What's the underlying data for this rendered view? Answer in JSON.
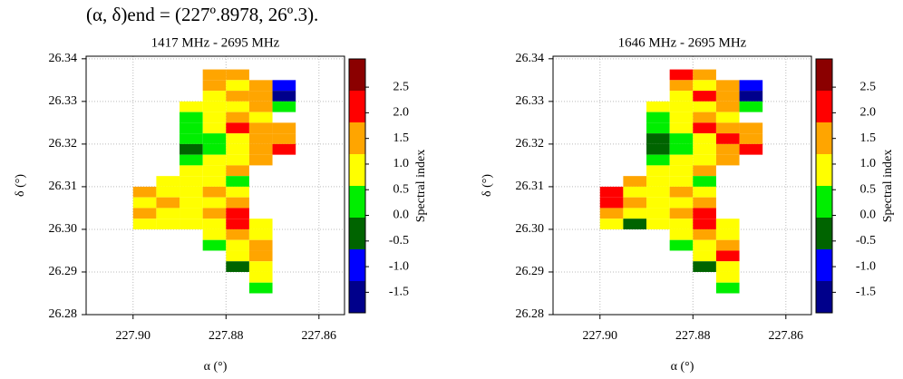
{
  "caption": "(α, δ)end = (227º.8978, 26º.3).",
  "chart_data": [
    {
      "type": "heatmap",
      "title": "1417 MHz - 2695 MHz",
      "xlabel": "α (°)",
      "ylabel": "δ (°)",
      "xlim": [
        227.9101,
        227.8545
      ],
      "ylim": [
        26.28,
        26.3406
      ],
      "xticks": [
        {
          "value": 227.9,
          "label": "227.90"
        },
        227.88,
        227.86
      ],
      "yticks": [
        26.28,
        26.29,
        {
          "value": 26.3,
          "label": "26.30"
        },
        26.31,
        26.32,
        26.33,
        26.34
      ],
      "grid": true,
      "colorbar": {
        "label": "Spectral index",
        "lim": [
          -1.9,
          3.05
        ],
        "colors": [
          "#00008b",
          "#0000ff",
          "#006400",
          "#00ee00",
          "#ffff00",
          "#ffa500",
          "#ff0000",
          "#8b0000"
        ],
        "ticks": [
          -1.5,
          {
            "value": -1,
            "label": "-1.0"
          },
          -0.5,
          {
            "value": 0,
            "label": "0.0"
          },
          0.5,
          {
            "value": 1,
            "label": "1.0"
          },
          1.5,
          {
            "value": 2,
            "label": "2.0"
          },
          2.5
        ]
      },
      "x": [
        227.9075,
        227.9025,
        227.8975,
        227.8925,
        227.8875,
        227.8825,
        227.8775,
        227.8725,
        227.8675,
        227.8625,
        227.8575
      ],
      "y": [
        26.33625,
        26.33375,
        26.33125,
        26.32875,
        26.32625,
        26.32375,
        26.32125,
        26.31875,
        26.31625,
        26.31375,
        26.31125,
        26.30875,
        26.30625,
        26.30375,
        26.30125,
        26.29875,
        26.29625,
        26.29375,
        26.29125,
        26.28875,
        26.28625
      ],
      "z": [
        [
          null,
          null,
          null,
          null,
          null,
          1.5,
          1.5,
          null,
          null,
          null,
          null
        ],
        [
          null,
          null,
          null,
          null,
          null,
          1.5,
          0.9,
          1.5,
          -1.0,
          null,
          null
        ],
        [
          null,
          null,
          null,
          null,
          null,
          0.9,
          1.5,
          1.5,
          -1.6,
          null,
          null
        ],
        [
          null,
          null,
          null,
          null,
          0.9,
          0.9,
          0.9,
          1.5,
          0.3,
          null,
          null
        ],
        [
          null,
          null,
          null,
          null,
          0.3,
          0.9,
          1.5,
          0.9,
          null,
          null,
          null
        ],
        [
          null,
          null,
          null,
          null,
          0.3,
          0.9,
          2.1,
          1.5,
          1.5,
          null,
          null
        ],
        [
          null,
          null,
          null,
          null,
          0.3,
          0.3,
          0.9,
          1.5,
          1.5,
          null,
          null
        ],
        [
          null,
          null,
          null,
          null,
          -0.3,
          0.3,
          0.9,
          1.5,
          2.1,
          null,
          null
        ],
        [
          null,
          null,
          null,
          null,
          0.3,
          0.9,
          0.9,
          1.5,
          null,
          null,
          null
        ],
        [
          null,
          null,
          null,
          null,
          0.9,
          0.9,
          1.5,
          null,
          null,
          null,
          null
        ],
        [
          null,
          null,
          null,
          0.9,
          0.9,
          0.9,
          0.3,
          null,
          null,
          null,
          null
        ],
        [
          null,
          null,
          1.5,
          0.9,
          0.9,
          1.5,
          0.9,
          null,
          null,
          null,
          null
        ],
        [
          null,
          null,
          0.9,
          1.5,
          0.9,
          0.9,
          1.5,
          null,
          null,
          null,
          null
        ],
        [
          null,
          null,
          1.5,
          0.9,
          0.9,
          1.5,
          2.1,
          null,
          null,
          null,
          null
        ],
        [
          null,
          null,
          0.9,
          0.9,
          0.9,
          0.9,
          2.1,
          0.9,
          null,
          null,
          null
        ],
        [
          null,
          null,
          null,
          null,
          null,
          0.9,
          1.5,
          0.9,
          null,
          null,
          null
        ],
        [
          null,
          null,
          null,
          null,
          null,
          0.3,
          0.9,
          1.5,
          null,
          null,
          null
        ],
        [
          null,
          null,
          null,
          null,
          null,
          null,
          0.9,
          1.5,
          null,
          null,
          null
        ],
        [
          null,
          null,
          null,
          null,
          null,
          null,
          -0.3,
          0.9,
          null,
          null,
          null
        ],
        [
          null,
          null,
          null,
          null,
          null,
          null,
          null,
          0.9,
          null,
          null,
          null
        ],
        [
          null,
          null,
          null,
          null,
          null,
          null,
          null,
          0.3,
          null,
          null,
          null
        ]
      ]
    },
    {
      "type": "heatmap",
      "title": "1646 MHz - 2695 MHz",
      "xlabel": "α (°)",
      "ylabel": "δ (°)",
      "xlim": [
        227.9101,
        227.8545
      ],
      "ylim": [
        26.28,
        26.3406
      ],
      "xticks": [
        {
          "value": 227.9,
          "label": "227.90"
        },
        227.88,
        227.86
      ],
      "yticks": [
        26.28,
        26.29,
        {
          "value": 26.3,
          "label": "26.30"
        },
        26.31,
        26.32,
        26.33,
        26.34
      ],
      "grid": true,
      "colorbar": {
        "label": "Spectral index",
        "lim": [
          -1.9,
          3.05
        ],
        "colors": [
          "#00008b",
          "#0000ff",
          "#006400",
          "#00ee00",
          "#ffff00",
          "#ffa500",
          "#ff0000",
          "#8b0000"
        ],
        "ticks": [
          -1.5,
          {
            "value": -1,
            "label": "-1.0"
          },
          -0.5,
          {
            "value": 0,
            "label": "0.0"
          },
          0.5,
          {
            "value": 1,
            "label": "1.0"
          },
          1.5,
          {
            "value": 2,
            "label": "2.0"
          },
          2.5
        ]
      },
      "x": [
        227.9075,
        227.9025,
        227.8975,
        227.8925,
        227.8875,
        227.8825,
        227.8775,
        227.8725,
        227.8675,
        227.8625,
        227.8575
      ],
      "y": [
        26.33625,
        26.33375,
        26.33125,
        26.32875,
        26.32625,
        26.32375,
        26.32125,
        26.31875,
        26.31625,
        26.31375,
        26.31125,
        26.30875,
        26.30625,
        26.30375,
        26.30125,
        26.29875,
        26.29625,
        26.29375,
        26.29125,
        26.28875,
        26.28625
      ],
      "z": [
        [
          null,
          null,
          null,
          null,
          null,
          2.1,
          1.5,
          null,
          null,
          null,
          null
        ],
        [
          null,
          null,
          null,
          null,
          null,
          1.5,
          0.9,
          1.5,
          -1.0,
          null,
          null
        ],
        [
          null,
          null,
          null,
          null,
          null,
          0.9,
          2.1,
          1.5,
          -1.6,
          null,
          null
        ],
        [
          null,
          null,
          null,
          null,
          0.9,
          0.9,
          0.9,
          1.5,
          0.3,
          null,
          null
        ],
        [
          null,
          null,
          null,
          null,
          0.3,
          0.9,
          1.5,
          0.9,
          null,
          null,
          null
        ],
        [
          null,
          null,
          null,
          null,
          0.3,
          0.9,
          2.1,
          1.5,
          1.5,
          null,
          null
        ],
        [
          null,
          null,
          null,
          null,
          -0.3,
          0.3,
          0.9,
          2.1,
          1.5,
          null,
          null
        ],
        [
          null,
          null,
          null,
          null,
          -0.3,
          0.3,
          0.9,
          1.5,
          2.1,
          null,
          null
        ],
        [
          null,
          null,
          null,
          null,
          0.3,
          0.9,
          0.9,
          1.5,
          null,
          null,
          null
        ],
        [
          null,
          null,
          null,
          null,
          0.9,
          0.9,
          1.5,
          null,
          null,
          null,
          null
        ],
        [
          null,
          null,
          null,
          1.5,
          0.9,
          0.9,
          0.3,
          null,
          null,
          null,
          null
        ],
        [
          null,
          null,
          2.1,
          0.9,
          0.9,
          1.5,
          0.9,
          null,
          null,
          null,
          null
        ],
        [
          null,
          null,
          2.1,
          1.5,
          0.9,
          0.9,
          1.5,
          null,
          null,
          null,
          null
        ],
        [
          null,
          null,
          1.5,
          0.9,
          0.9,
          1.5,
          2.1,
          null,
          null,
          null,
          null
        ],
        [
          null,
          null,
          0.9,
          -0.3,
          0.9,
          0.9,
          2.1,
          0.9,
          null,
          null,
          null
        ],
        [
          null,
          null,
          null,
          null,
          null,
          0.9,
          1.5,
          0.9,
          null,
          null,
          null
        ],
        [
          null,
          null,
          null,
          null,
          null,
          0.3,
          0.9,
          1.5,
          null,
          null,
          null
        ],
        [
          null,
          null,
          null,
          null,
          null,
          null,
          0.9,
          2.1,
          null,
          null,
          null
        ],
        [
          null,
          null,
          null,
          null,
          null,
          null,
          -0.3,
          0.9,
          null,
          null,
          null
        ],
        [
          null,
          null,
          null,
          null,
          null,
          null,
          null,
          0.9,
          null,
          null,
          null
        ],
        [
          null,
          null,
          null,
          null,
          null,
          null,
          null,
          0.3,
          null,
          null,
          null
        ]
      ]
    }
  ]
}
